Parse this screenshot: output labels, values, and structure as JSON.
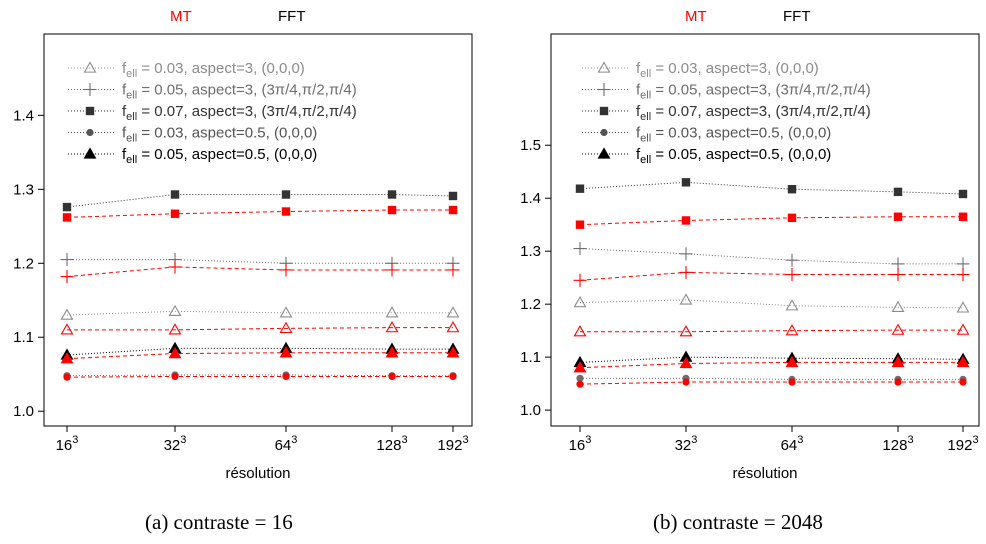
{
  "colors": {
    "mt": "#ff0000",
    "fft": "#000000",
    "gray_light": "#8c8c8c",
    "gray_mid": "#6e6e6e",
    "dark": "#333333",
    "black": "#000000"
  },
  "header": {
    "mt_label": "MT",
    "fft_label": "FFT"
  },
  "legend": [
    {
      "base": "f",
      "sub": "ell",
      "text": " = 0.03, aspect=3, (0,0,0)",
      "marker": "triangle-open",
      "color": "#8c8c8c"
    },
    {
      "base": "f",
      "sub": "ell",
      "text": " = 0.05, aspect=3, (3π/4,π/2,π/4)",
      "marker": "plus",
      "color": "#6e6e6e"
    },
    {
      "base": "f",
      "sub": "ell",
      "text": " = 0.07, aspect=3, (3π/4,π/2,π/4)",
      "marker": "square",
      "color": "#333333"
    },
    {
      "base": "f",
      "sub": "ell",
      "text": " = 0.03, aspect=0.5, (0,0,0)",
      "marker": "circle",
      "color": "#555555"
    },
    {
      "base": "f",
      "sub": "ell",
      "text": " = 0.05, aspect=0.5, (0,0,0)",
      "marker": "triangle",
      "color": "#000000"
    }
  ],
  "chart_data": [
    {
      "type": "line",
      "caption": "(a) contraste = 16",
      "xlabel": "résolution",
      "x_ticks": [
        {
          "base": "16",
          "exp": "3"
        },
        {
          "base": "32",
          "exp": "3"
        },
        {
          "base": "64",
          "exp": "3"
        },
        {
          "base": "128",
          "exp": "3"
        },
        {
          "base": "192",
          "exp": "3"
        }
      ],
      "x": [
        16,
        32,
        64,
        128,
        192
      ],
      "x_scale": "log",
      "y_ticks": [
        "1.0",
        "1.1",
        "1.2",
        "1.3",
        "1.4"
      ],
      "ylim": [
        0.98,
        1.51
      ],
      "series": [
        {
          "method": "FFT",
          "marker": "triangle-open",
          "values": [
            1.13,
            1.135,
            1.133,
            1.133,
            1.133
          ]
        },
        {
          "method": "MT",
          "marker": "triangle-open",
          "values": [
            1.11,
            1.11,
            1.112,
            1.113,
            1.113
          ]
        },
        {
          "method": "FFT",
          "marker": "plus",
          "values": [
            1.205,
            1.205,
            1.2,
            1.2,
            1.2
          ]
        },
        {
          "method": "MT",
          "marker": "plus",
          "values": [
            1.182,
            1.195,
            1.191,
            1.191,
            1.191
          ]
        },
        {
          "method": "FFT",
          "marker": "square",
          "values": [
            1.276,
            1.293,
            1.293,
            1.293,
            1.291
          ]
        },
        {
          "method": "MT",
          "marker": "square",
          "values": [
            1.262,
            1.267,
            1.27,
            1.272,
            1.272
          ]
        },
        {
          "method": "FFT",
          "marker": "circle",
          "values": [
            1.048,
            1.049,
            1.049,
            1.048,
            1.048
          ]
        },
        {
          "method": "MT",
          "marker": "circle",
          "values": [
            1.046,
            1.047,
            1.047,
            1.047,
            1.047
          ]
        },
        {
          "method": "FFT",
          "marker": "triangle",
          "values": [
            1.076,
            1.085,
            1.085,
            1.084,
            1.084
          ]
        },
        {
          "method": "MT",
          "marker": "triangle",
          "values": [
            1.071,
            1.078,
            1.079,
            1.079,
            1.079
          ]
        }
      ]
    },
    {
      "type": "line",
      "caption": "(b) contraste = 2048",
      "xlabel": "résolution",
      "x_ticks": [
        {
          "base": "16",
          "exp": "3"
        },
        {
          "base": "32",
          "exp": "3"
        },
        {
          "base": "64",
          "exp": "3"
        },
        {
          "base": "128",
          "exp": "3"
        },
        {
          "base": "192",
          "exp": "3"
        }
      ],
      "x": [
        16,
        32,
        64,
        128,
        192
      ],
      "x_scale": "log",
      "y_ticks": [
        "1.0",
        "1.1",
        "1.2",
        "1.3",
        "1.4",
        "1.5"
      ],
      "ylim": [
        0.97,
        1.71
      ],
      "series": [
        {
          "method": "FFT",
          "marker": "triangle-open",
          "values": [
            1.203,
            1.208,
            1.197,
            1.194,
            1.193
          ]
        },
        {
          "method": "MT",
          "marker": "triangle-open",
          "values": [
            1.148,
            1.148,
            1.15,
            1.151,
            1.151
          ]
        },
        {
          "method": "FFT",
          "marker": "plus",
          "values": [
            1.305,
            1.295,
            1.283,
            1.276,
            1.276
          ]
        },
        {
          "method": "MT",
          "marker": "plus",
          "values": [
            1.245,
            1.26,
            1.256,
            1.256,
            1.256
          ]
        },
        {
          "method": "FFT",
          "marker": "square",
          "values": [
            1.418,
            1.43,
            1.417,
            1.412,
            1.408
          ]
        },
        {
          "method": "MT",
          "marker": "square",
          "values": [
            1.35,
            1.358,
            1.363,
            1.365,
            1.365
          ]
        },
        {
          "method": "FFT",
          "marker": "circle",
          "values": [
            1.06,
            1.06,
            1.058,
            1.058,
            1.058
          ]
        },
        {
          "method": "MT",
          "marker": "circle",
          "values": [
            1.049,
            1.053,
            1.053,
            1.053,
            1.053
          ]
        },
        {
          "method": "FFT",
          "marker": "triangle",
          "values": [
            1.09,
            1.1,
            1.098,
            1.097,
            1.096
          ]
        },
        {
          "method": "MT",
          "marker": "triangle",
          "values": [
            1.08,
            1.088,
            1.09,
            1.09,
            1.09
          ]
        }
      ]
    }
  ]
}
